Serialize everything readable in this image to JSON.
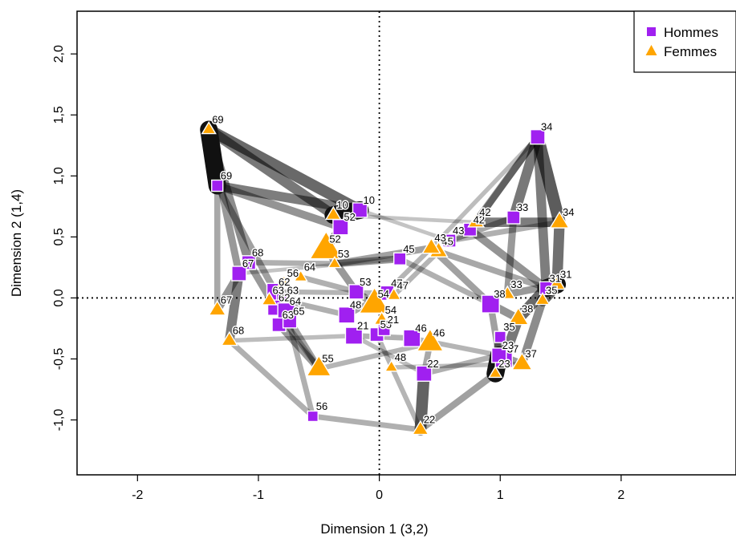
{
  "chart_data": {
    "type": "scatter",
    "xlabel": "Dimension 1 (3,2)",
    "ylabel": "Dimension 2 (1,4)",
    "xlim": [
      -2.5,
      2.95
    ],
    "ylim": [
      -1.45,
      2.35
    ],
    "x_ticks": [
      {
        "v": -2,
        "label": "-2"
      },
      {
        "v": -1,
        "label": "-1"
      },
      {
        "v": 0,
        "label": "0"
      },
      {
        "v": 1,
        "label": "1"
      },
      {
        "v": 2,
        "label": "2"
      }
    ],
    "y_ticks": [
      {
        "v": -1.0,
        "label": "-1,0"
      },
      {
        "v": -0.5,
        "label": "-0,5"
      },
      {
        "v": 0.0,
        "label": "0,0"
      },
      {
        "v": 0.5,
        "label": "0,5"
      },
      {
        "v": 1.0,
        "label": "1,0"
      },
      {
        "v": 1.5,
        "label": "1,5"
      },
      {
        "v": 2.0,
        "label": "2,0"
      }
    ],
    "reference_lines": {
      "x": 0,
      "y": 0,
      "style": "dotted"
    },
    "legend": {
      "position": "top-right",
      "entries": [
        {
          "label": "Hommes",
          "marker": "square",
          "color": "#a020f0"
        },
        {
          "label": "Femmes",
          "marker": "triangle",
          "color": "#ffa500"
        }
      ]
    },
    "series": [
      {
        "name": "Hommes",
        "marker": "square",
        "color": "#a020f0",
        "points": [
          {
            "label": "10",
            "x": -0.16,
            "y": 0.72,
            "size": 1.0
          },
          {
            "label": "52",
            "x": -0.32,
            "y": 0.58,
            "size": 1.1
          },
          {
            "label": "69",
            "x": -1.34,
            "y": 0.92,
            "size": 0.6
          },
          {
            "label": "68",
            "x": -1.08,
            "y": 0.29,
            "size": 0.9
          },
          {
            "label": "67",
            "x": -1.16,
            "y": 0.2,
            "size": 1.0
          },
          {
            "label": "62",
            "x": -0.86,
            "y": 0.05,
            "size": 1.3
          },
          {
            "label": "63",
            "x": -0.79,
            "y": -0.02,
            "size": 1.0
          },
          {
            "label": "62",
            "x": -0.86,
            "y": -0.08,
            "size": 1.1
          },
          {
            "label": "64",
            "x": -0.77,
            "y": -0.11,
            "size": 1.3
          },
          {
            "label": "63",
            "x": -0.83,
            "y": -0.22,
            "size": 0.9
          },
          {
            "label": "65",
            "x": -0.74,
            "y": -0.19,
            "size": 0.9
          },
          {
            "label": "53",
            "x": -0.19,
            "y": 0.05,
            "size": 1.0
          },
          {
            "label": "48",
            "x": -0.27,
            "y": -0.14,
            "size": 1.2
          },
          {
            "label": "21",
            "x": -0.21,
            "y": -0.31,
            "size": 1.3
          },
          {
            "label": "47",
            "x": 0.07,
            "y": 0.04,
            "size": 1.0
          },
          {
            "label": "55",
            "x": -0.02,
            "y": -0.3,
            "size": 0.9
          },
          {
            "label": "21",
            "x": 0.04,
            "y": -0.26,
            "size": 0.7
          },
          {
            "label": "45",
            "x": 0.17,
            "y": 0.32,
            "size": 0.7
          },
          {
            "label": "46",
            "x": 0.27,
            "y": -0.33,
            "size": 1.3
          },
          {
            "label": "22",
            "x": 0.37,
            "y": -0.62,
            "size": 1.1
          },
          {
            "label": "42",
            "x": 0.75,
            "y": 0.56,
            "size": 0.8
          },
          {
            "label": "43",
            "x": 0.58,
            "y": 0.47,
            "size": 0.8
          },
          {
            "label": "33",
            "x": 1.11,
            "y": 0.66,
            "size": 0.8
          },
          {
            "label": "34",
            "x": 1.31,
            "y": 1.32,
            "size": 1.0
          },
          {
            "label": "38",
            "x": 0.92,
            "y": -0.05,
            "size": 1.4
          },
          {
            "label": "31",
            "x": 1.38,
            "y": 0.08,
            "size": 0.8
          },
          {
            "label": "35",
            "x": 1.0,
            "y": -0.32,
            "size": 0.6
          },
          {
            "label": "37",
            "x": 1.03,
            "y": -0.5,
            "size": 1.3
          },
          {
            "label": "23",
            "x": 0.99,
            "y": -0.47,
            "size": 1.0
          },
          {
            "label": "56",
            "x": -0.55,
            "y": -0.97,
            "size": 0.5
          }
        ]
      },
      {
        "name": "Femmes",
        "marker": "triangle",
        "color": "#ffa500",
        "points": [
          {
            "label": "69",
            "x": -1.41,
            "y": 1.38,
            "size": 0.6
          },
          {
            "label": "10",
            "x": -0.38,
            "y": 0.68,
            "size": 0.7
          },
          {
            "label": "52",
            "x": -0.44,
            "y": 0.4,
            "size": 2.4
          },
          {
            "label": "53",
            "x": -0.37,
            "y": 0.28,
            "size": 0.5
          },
          {
            "label": "64",
            "x": -0.65,
            "y": 0.17,
            "size": 0.5
          },
          {
            "label": "56",
            "x": -0.79,
            "y": 0.12,
            "size": 0.6
          },
          {
            "label": "63",
            "x": -0.91,
            "y": -0.02,
            "size": 0.7
          },
          {
            "label": "67",
            "x": -1.34,
            "y": -0.1,
            "size": 0.9
          },
          {
            "label": "68",
            "x": -1.24,
            "y": -0.35,
            "size": 0.8
          },
          {
            "label": "54",
            "x": -0.04,
            "y": -0.05,
            "size": 2.2
          },
          {
            "label": "47",
            "x": 0.12,
            "y": 0.02,
            "size": 0.6
          },
          {
            "label": "54",
            "x": 0.02,
            "y": -0.18,
            "size": 0.7
          },
          {
            "label": "55",
            "x": -0.5,
            "y": -0.58,
            "size": 1.6
          },
          {
            "label": "48",
            "x": 0.1,
            "y": -0.57,
            "size": 0.5
          },
          {
            "label": "46",
            "x": 0.42,
            "y": -0.37,
            "size": 1.8
          },
          {
            "label": "45",
            "x": 0.49,
            "y": 0.38,
            "size": 1.0
          },
          {
            "label": "43",
            "x": 0.43,
            "y": 0.41,
            "size": 1.0
          },
          {
            "label": "42",
            "x": 0.8,
            "y": 0.62,
            "size": 0.8
          },
          {
            "label": "34",
            "x": 1.49,
            "y": 0.62,
            "size": 1.1
          },
          {
            "label": "33",
            "x": 1.06,
            "y": 0.03,
            "size": 0.7
          },
          {
            "label": "31",
            "x": 1.47,
            "y": 0.11,
            "size": 0.8
          },
          {
            "label": "35",
            "x": 1.35,
            "y": -0.02,
            "size": 0.6
          },
          {
            "label": "38",
            "x": 1.15,
            "y": -0.17,
            "size": 1.2
          },
          {
            "label": "37",
            "x": 1.18,
            "y": -0.54,
            "size": 1.2
          },
          {
            "label": "22",
            "x": 0.34,
            "y": -1.08,
            "size": 0.8
          },
          {
            "label": "23",
            "x": 0.96,
            "y": -0.62,
            "size": 0.5
          }
        ]
      }
    ],
    "edges": [
      {
        "from": [
          -1.41,
          1.38
        ],
        "to": [
          -0.16,
          0.72
        ],
        "w": 0.85
      },
      {
        "from": [
          -1.41,
          1.38
        ],
        "to": [
          -0.38,
          0.68
        ],
        "w": 0.75
      },
      {
        "from": [
          -1.41,
          1.38
        ],
        "to": [
          -1.34,
          0.92
        ],
        "w": 0.9
      },
      {
        "from": [
          -1.34,
          0.92
        ],
        "to": [
          -0.16,
          0.72
        ],
        "w": 0.7
      },
      {
        "from": [
          -1.34,
          0.92
        ],
        "to": [
          -0.32,
          0.58
        ],
        "w": 0.55
      },
      {
        "from": [
          -0.16,
          0.72
        ],
        "to": [
          -0.38,
          0.68
        ],
        "w": 0.95
      },
      {
        "from": [
          -0.32,
          0.58
        ],
        "to": [
          -0.44,
          0.4
        ],
        "w": 0.6
      },
      {
        "from": [
          -1.41,
          1.38
        ],
        "to": [
          -1.08,
          0.29
        ],
        "w": 0.6
      },
      {
        "from": [
          -1.41,
          1.38
        ],
        "to": [
          -1.16,
          0.2
        ],
        "w": 0.5
      },
      {
        "from": [
          -1.34,
          0.92
        ],
        "to": [
          -1.34,
          -0.1
        ],
        "w": 0.4
      },
      {
        "from": [
          -1.34,
          0.92
        ],
        "to": [
          -0.86,
          0.05
        ],
        "w": 0.45
      },
      {
        "from": [
          -1.08,
          0.29
        ],
        "to": [
          -0.86,
          -0.08
        ],
        "w": 0.5
      },
      {
        "from": [
          -1.16,
          0.2
        ],
        "to": [
          -1.24,
          -0.35
        ],
        "w": 0.7
      },
      {
        "from": [
          -1.16,
          0.2
        ],
        "to": [
          -1.34,
          -0.1
        ],
        "w": 0.55
      },
      {
        "from": [
          -0.86,
          0.05
        ],
        "to": [
          -0.74,
          -0.19
        ],
        "w": 0.6
      },
      {
        "from": [
          -0.83,
          -0.22
        ],
        "to": [
          -0.5,
          -0.58
        ],
        "w": 0.5
      },
      {
        "from": [
          -0.74,
          -0.19
        ],
        "to": [
          -0.5,
          -0.58
        ],
        "w": 0.45
      },
      {
        "from": [
          -1.24,
          -0.35
        ],
        "to": [
          -0.55,
          -0.97
        ],
        "w": 0.35
      },
      {
        "from": [
          -0.77,
          -0.11
        ],
        "to": [
          -0.55,
          -0.97
        ],
        "w": 0.35
      },
      {
        "from": [
          -0.55,
          -0.97
        ],
        "to": [
          0.34,
          -1.08
        ],
        "w": 0.35
      },
      {
        "from": [
          -0.44,
          0.4
        ],
        "to": [
          -0.19,
          0.05
        ],
        "w": 0.5
      },
      {
        "from": [
          -0.37,
          0.28
        ],
        "to": [
          0.17,
          0.32
        ],
        "w": 0.5
      },
      {
        "from": [
          -0.37,
          0.28
        ],
        "to": [
          0.43,
          0.41
        ],
        "w": 0.45
      },
      {
        "from": [
          -0.19,
          0.05
        ],
        "to": [
          -0.04,
          -0.05
        ],
        "w": 0.5
      },
      {
        "from": [
          -0.27,
          -0.14
        ],
        "to": [
          0.07,
          0.04
        ],
        "w": 0.4
      },
      {
        "from": [
          -0.21,
          -0.31
        ],
        "to": [
          0.27,
          -0.33
        ],
        "w": 0.35
      },
      {
        "from": [
          0.37,
          -0.62
        ],
        "to": [
          0.34,
          -1.08
        ],
        "w": 0.9
      },
      {
        "from": [
          0.42,
          -0.37
        ],
        "to": [
          0.37,
          -0.62
        ],
        "w": 0.4
      },
      {
        "from": [
          0.34,
          -1.08
        ],
        "to": [
          0.96,
          -0.62
        ],
        "w": 0.45
      },
      {
        "from": [
          0.37,
          -0.62
        ],
        "to": [
          0.99,
          -0.47
        ],
        "w": 0.35
      },
      {
        "from": [
          0.43,
          0.41
        ],
        "to": [
          0.92,
          -0.05
        ],
        "w": 0.45
      },
      {
        "from": [
          0.58,
          0.47
        ],
        "to": [
          1.11,
          0.66
        ],
        "w": 0.4
      },
      {
        "from": [
          0.75,
          0.56
        ],
        "to": [
          1.31,
          1.32
        ],
        "w": 0.5
      },
      {
        "from": [
          0.8,
          0.62
        ],
        "to": [
          1.49,
          0.62
        ],
        "w": 0.7
      },
      {
        "from": [
          0.75,
          0.56
        ],
        "to": [
          1.38,
          0.08
        ],
        "w": 0.55
      },
      {
        "from": [
          1.31,
          1.32
        ],
        "to": [
          1.49,
          0.62
        ],
        "w": 0.95
      },
      {
        "from": [
          1.31,
          1.32
        ],
        "to": [
          1.11,
          0.66
        ],
        "w": 0.75
      },
      {
        "from": [
          1.31,
          1.32
        ],
        "to": [
          1.38,
          0.08
        ],
        "w": 0.7
      },
      {
        "from": [
          1.31,
          1.32
        ],
        "to": [
          0.43,
          0.41
        ],
        "w": 0.25
      },
      {
        "from": [
          1.49,
          0.62
        ],
        "to": [
          1.47,
          0.11
        ],
        "w": 0.8
      },
      {
        "from": [
          1.11,
          0.66
        ],
        "to": [
          1.06,
          0.03
        ],
        "w": 0.5
      },
      {
        "from": [
          1.38,
          0.08
        ],
        "to": [
          1.15,
          -0.17
        ],
        "w": 0.85
      },
      {
        "from": [
          1.47,
          0.11
        ],
        "to": [
          1.35,
          -0.02
        ],
        "w": 0.9
      },
      {
        "from": [
          1.35,
          -0.02
        ],
        "to": [
          1.18,
          -0.54
        ],
        "w": 0.6
      },
      {
        "from": [
          1.15,
          -0.17
        ],
        "to": [
          1.03,
          -0.5
        ],
        "w": 0.75
      },
      {
        "from": [
          1.0,
          -0.32
        ],
        "to": [
          0.96,
          -0.62
        ],
        "w": 0.7
      },
      {
        "from": [
          0.92,
          -0.05
        ],
        "to": [
          0.99,
          -0.47
        ],
        "w": 0.45
      },
      {
        "from": [
          0.92,
          -0.05
        ],
        "to": [
          1.15,
          -0.17
        ],
        "w": 0.55
      },
      {
        "from": [
          0.17,
          0.32
        ],
        "to": [
          0.92,
          -0.05
        ],
        "w": 0.35
      },
      {
        "from": [
          -0.86,
          0.05
        ],
        "to": [
          0.07,
          0.04
        ],
        "w": 0.3
      },
      {
        "from": [
          -1.08,
          0.29
        ],
        "to": [
          -0.37,
          0.28
        ],
        "w": 0.35
      },
      {
        "from": [
          -0.65,
          0.17
        ],
        "to": [
          -0.19,
          0.05
        ],
        "w": 0.35
      },
      {
        "from": [
          -0.04,
          -0.05
        ],
        "to": [
          0.43,
          0.41
        ],
        "w": 0.3
      },
      {
        "from": [
          0.12,
          0.02
        ],
        "to": [
          0.49,
          0.38
        ],
        "w": 0.3
      },
      {
        "from": [
          0.27,
          -0.33
        ],
        "to": [
          0.99,
          -0.47
        ],
        "w": 0.3
      },
      {
        "from": [
          0.1,
          -0.57
        ],
        "to": [
          1.18,
          -0.54
        ],
        "w": 0.25
      },
      {
        "from": [
          -0.5,
          -0.58
        ],
        "to": [
          0.42,
          -0.37
        ],
        "w": 0.3
      },
      {
        "from": [
          -1.24,
          -0.35
        ],
        "to": [
          -0.21,
          -0.31
        ],
        "w": 0.25
      },
      {
        "from": [
          -0.38,
          0.68
        ],
        "to": [
          0.8,
          0.62
        ],
        "w": 0.2
      },
      {
        "from": [
          -0.16,
          0.72
        ],
        "to": [
          0.58,
          0.47
        ],
        "w": 0.2
      },
      {
        "from": [
          -1.16,
          0.2
        ],
        "to": [
          0.17,
          0.32
        ],
        "w": 0.2
      },
      {
        "from": [
          0.58,
          0.47
        ],
        "to": [
          1.49,
          0.62
        ],
        "w": 0.35
      },
      {
        "from": [
          0.49,
          0.38
        ],
        "to": [
          1.38,
          0.08
        ],
        "w": 0.4
      },
      {
        "from": [
          1.06,
          0.03
        ],
        "to": [
          1.47,
          0.11
        ],
        "w": 0.5
      },
      {
        "from": [
          -0.21,
          -0.31
        ],
        "to": [
          0.37,
          -0.62
        ],
        "w": 0.25
      },
      {
        "from": [
          -0.02,
          -0.3
        ],
        "to": [
          0.34,
          -1.08
        ],
        "w": 0.3
      },
      {
        "from": [
          -0.79,
          -0.02
        ],
        "to": [
          -0.27,
          -0.14
        ],
        "w": 0.35
      },
      {
        "from": [
          -0.91,
          -0.02
        ],
        "to": [
          -0.5,
          -0.58
        ],
        "w": 0.35
      },
      {
        "from": [
          1.31,
          1.32
        ],
        "to": [
          0.8,
          0.62
        ],
        "w": 0.45
      },
      {
        "from": [
          0.99,
          -0.47
        ],
        "to": [
          1.18,
          -0.54
        ],
        "w": 0.5
      }
    ],
    "highlight_pairs": [
      {
        "from": [
          -1.41,
          1.38
        ],
        "to": [
          -1.34,
          0.92
        ]
      },
      {
        "from": [
          -0.16,
          0.72
        ],
        "to": [
          -0.38,
          0.68
        ]
      },
      {
        "from": [
          1.38,
          0.08
        ],
        "to": [
          1.47,
          0.11
        ]
      },
      {
        "from": [
          0.96,
          -0.62
        ],
        "to": [
          0.99,
          -0.47
        ]
      }
    ]
  }
}
